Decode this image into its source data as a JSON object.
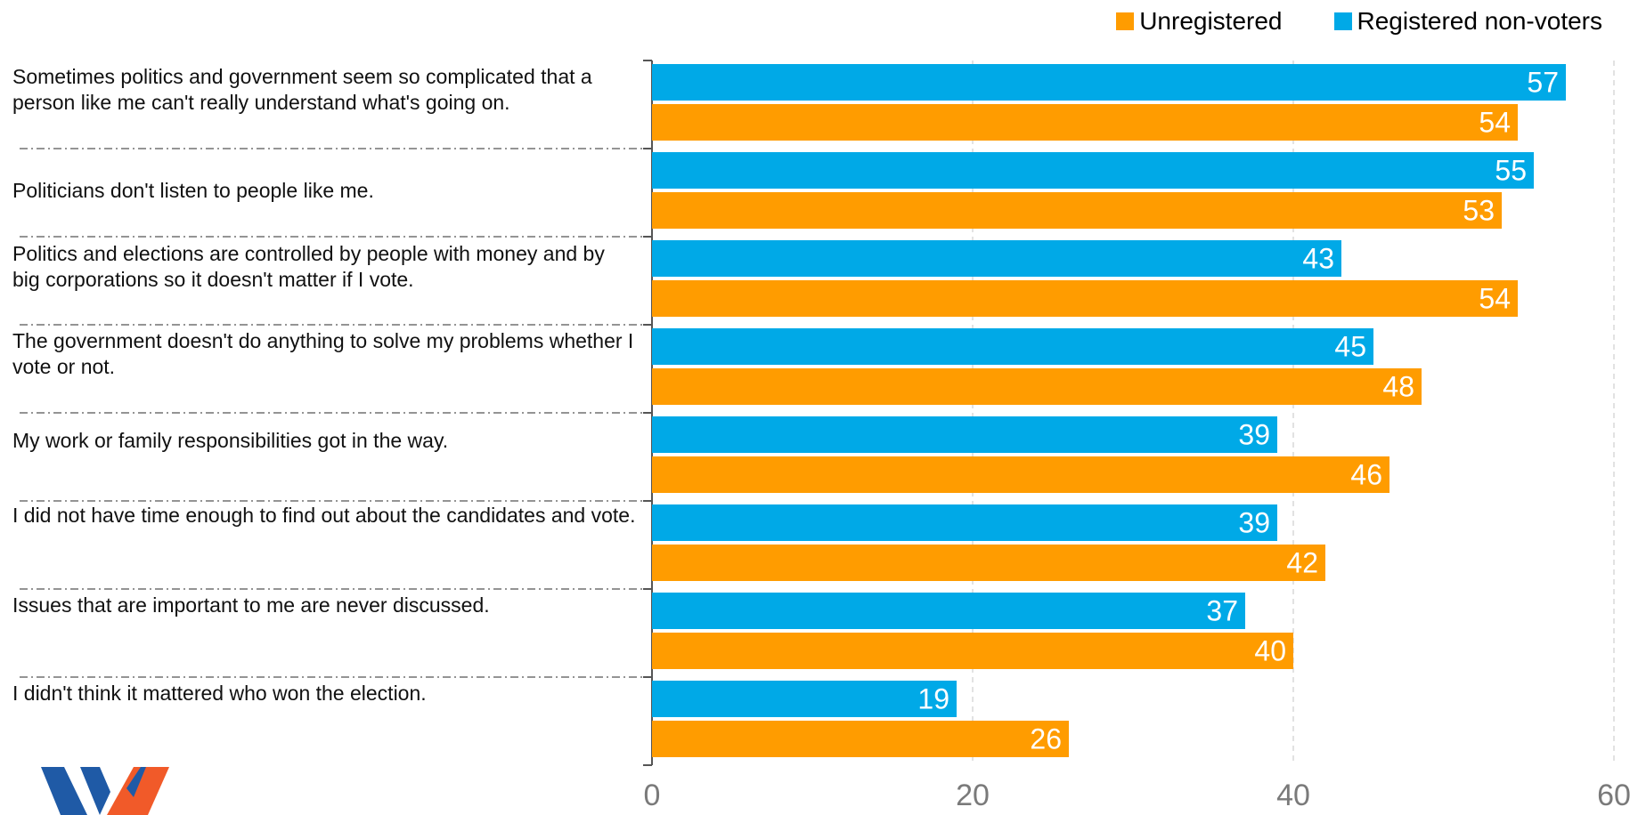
{
  "colors": {
    "registered": "#00a9e7",
    "unregistered": "#ff9c00",
    "grid": "#cfcfcf",
    "axis": "#555555",
    "logo_blue": "#1f5aa6",
    "logo_orange": "#f15a29"
  },
  "legend": [
    {
      "label": "Unregistered",
      "color": "#ff9c00"
    },
    {
      "label": "Registered non-voters",
      "color": "#00a9e7"
    }
  ],
  "chart_data": {
    "type": "bar",
    "orientation": "horizontal",
    "categories": [
      "Sometimes politics and government seem so complicated that a person like me can't really understand what's going on.",
      "Politicians don't listen to people like me.",
      "Politics and elections are controlled by people with money and by big corporations so it doesn't matter if I vote.",
      "The government doesn't do anything to solve my problems whether I vote or not.",
      "My work or family responsibilities got in the way.",
      "I did not have time enough to find out about the candidates and vote.",
      "Issues that are important to me are never discussed.",
      "I didn't think it mattered who won the election."
    ],
    "series": [
      {
        "name": "Registered non-voters",
        "values": [
          57,
          55,
          43,
          45,
          39,
          39,
          37,
          19
        ]
      },
      {
        "name": "Unregistered",
        "values": [
          54,
          53,
          54,
          48,
          46,
          42,
          40,
          26
        ]
      }
    ],
    "xlim": [
      0,
      60
    ],
    "xticks": [
      "0",
      "20",
      "40",
      "60"
    ],
    "grid": "vertical-dashed",
    "legend_position": "top-right"
  }
}
